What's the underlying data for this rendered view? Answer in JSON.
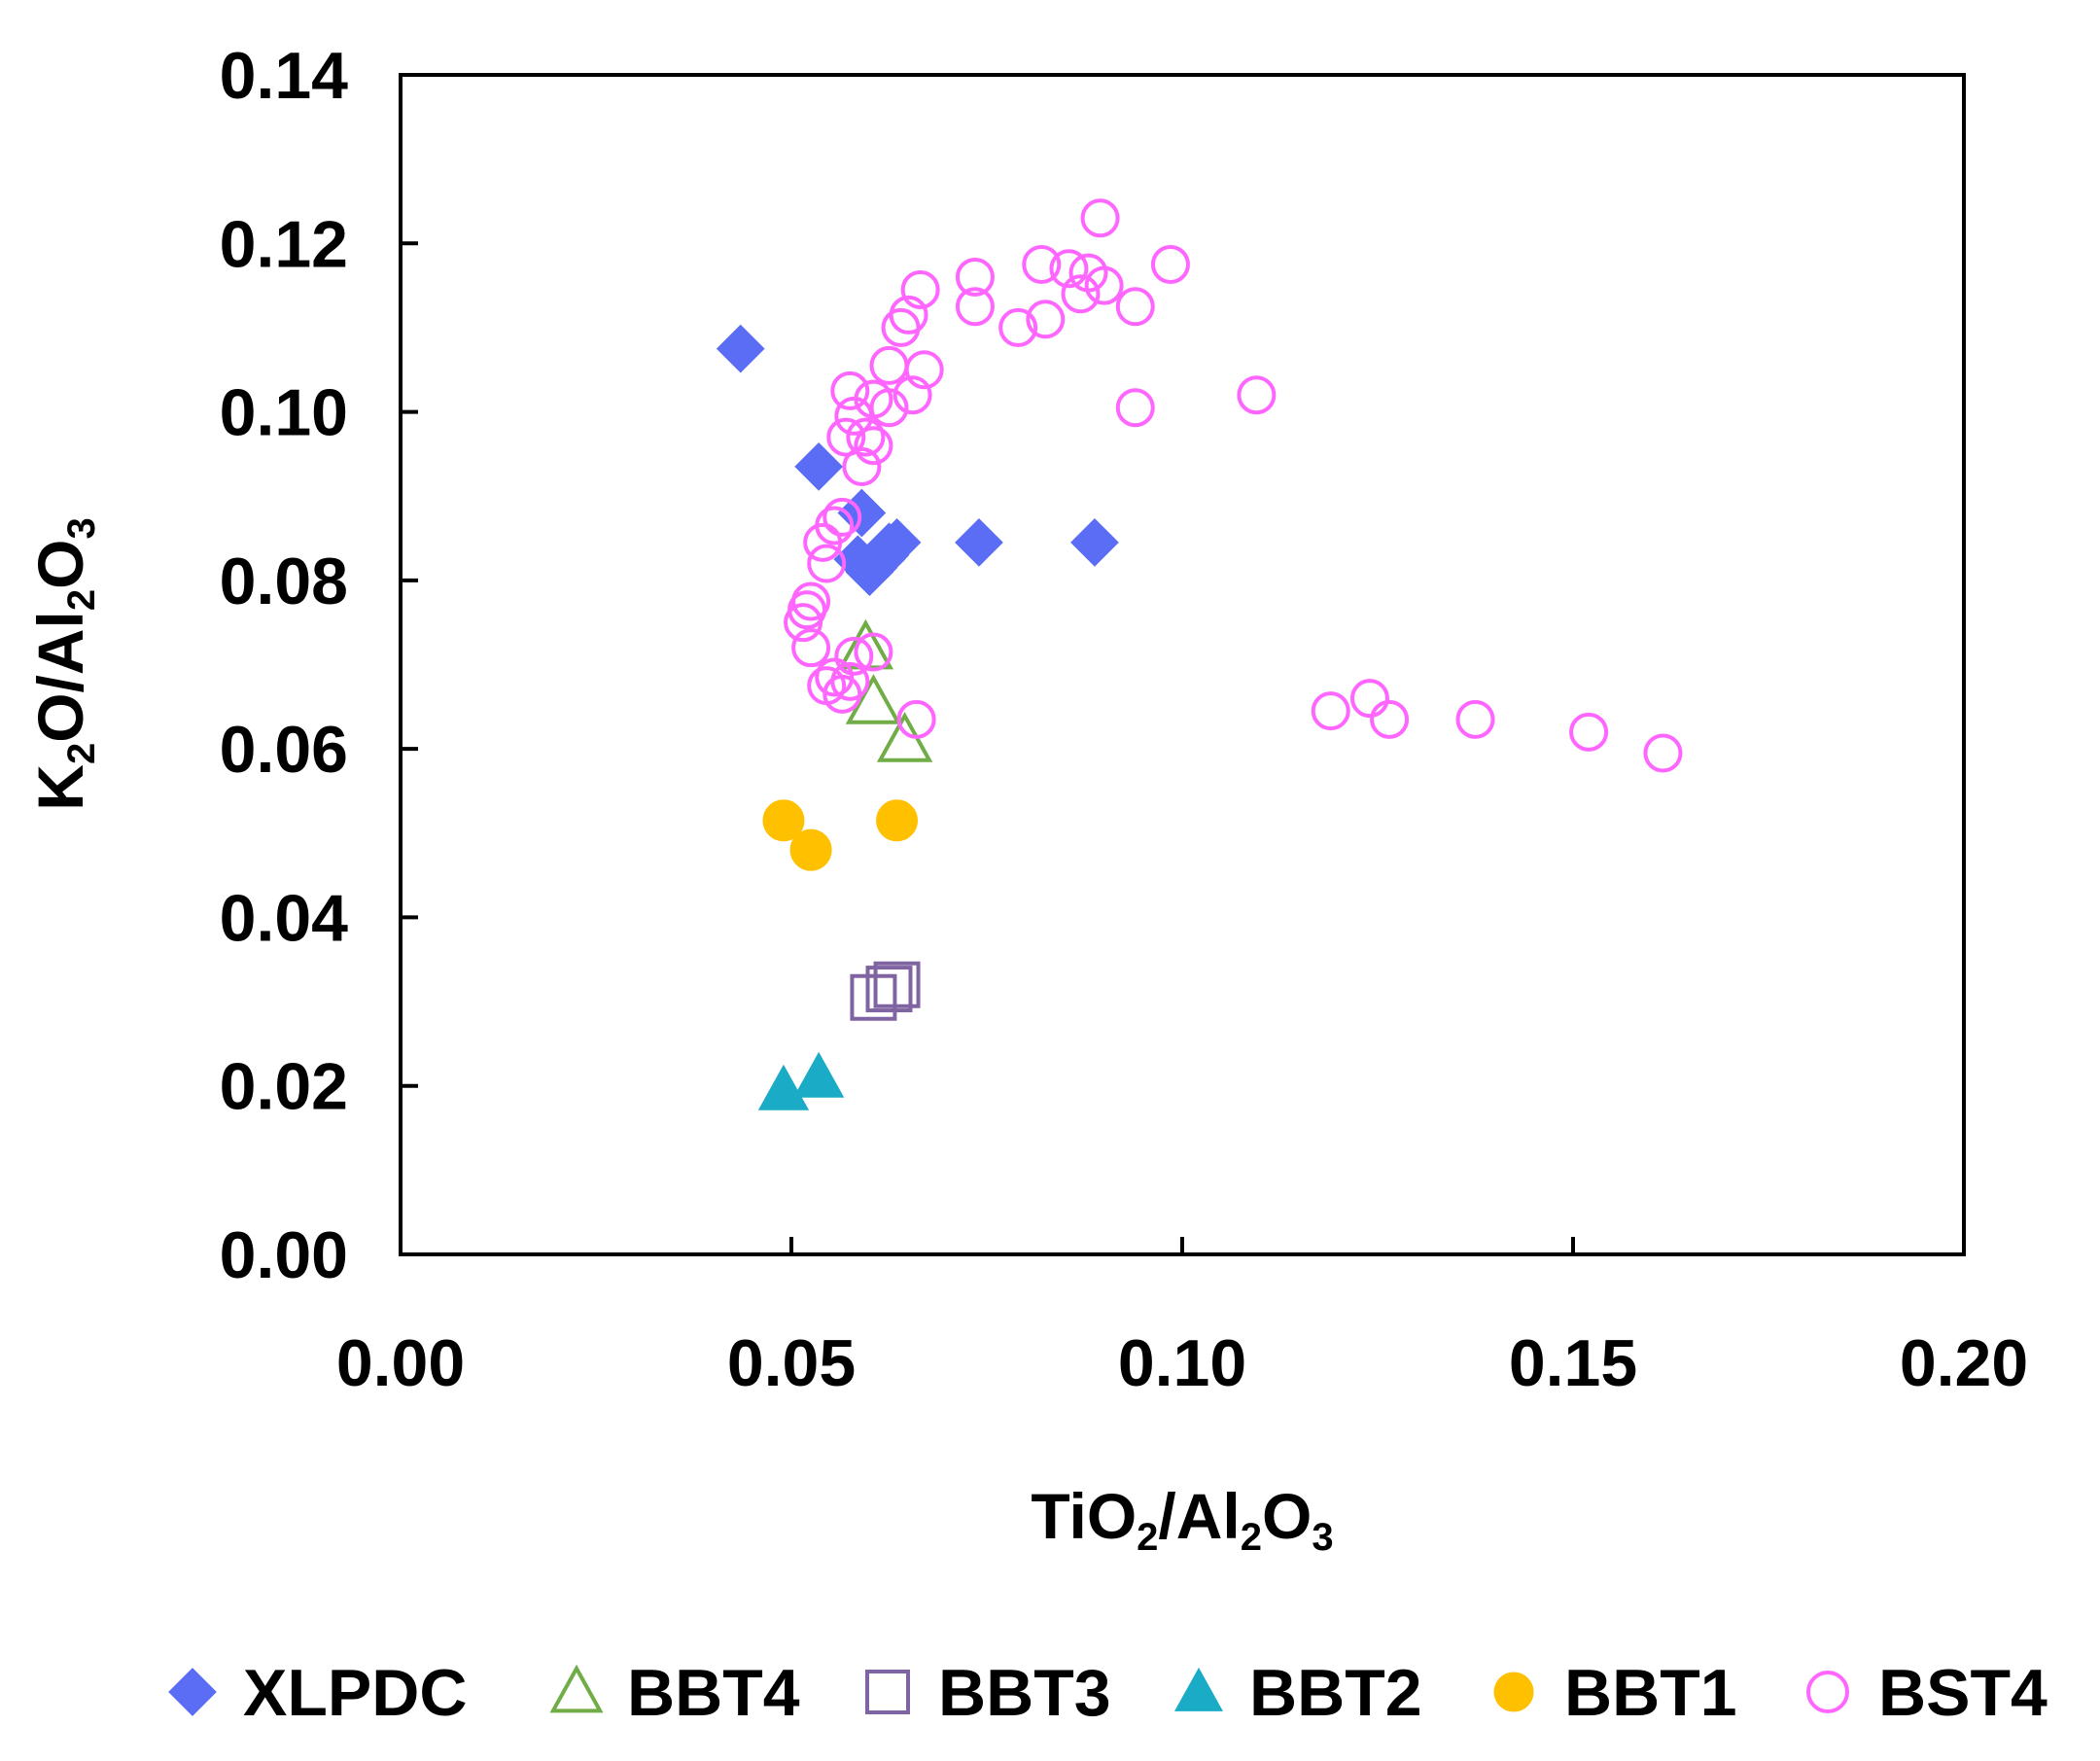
{
  "chart_data": {
    "type": "scatter",
    "title": "",
    "xlabel": {
      "parts": [
        "TiO",
        "2",
        "/Al",
        "2",
        "O",
        "3"
      ]
    },
    "ylabel": {
      "parts": [
        "K",
        "2",
        "O/Al",
        "2",
        "O",
        "3"
      ]
    },
    "xlim": [
      0,
      0.2
    ],
    "ylim": [
      0,
      0.14
    ],
    "xticks": [
      0.0,
      0.05,
      0.1,
      0.15,
      0.2
    ],
    "yticks": [
      0.0,
      0.02,
      0.04,
      0.06,
      0.08,
      0.1,
      0.12,
      0.14
    ],
    "xtick_labels": [
      "0.00",
      "0.05",
      "0.10",
      "0.15",
      "0.20"
    ],
    "ytick_labels": [
      "0.00",
      "0.02",
      "0.04",
      "0.06",
      "0.08",
      "0.10",
      "0.12",
      "0.14"
    ],
    "grid": false,
    "legend_position": "bottom",
    "series": [
      {
        "name": "XLPDC",
        "marker": "diamond",
        "filled": true,
        "color": "#5b6cf5",
        "points": [
          [
            0.0435,
            0.1075
          ],
          [
            0.0535,
            0.0935
          ],
          [
            0.059,
            0.088
          ],
          [
            0.0585,
            0.0825
          ],
          [
            0.06,
            0.081
          ],
          [
            0.0605,
            0.0815
          ],
          [
            0.0615,
            0.0825
          ],
          [
            0.062,
            0.083
          ],
          [
            0.0625,
            0.084
          ],
          [
            0.0635,
            0.0845
          ],
          [
            0.074,
            0.0845
          ],
          [
            0.0888,
            0.0845
          ]
        ]
      },
      {
        "name": "BBT4",
        "marker": "triangle",
        "filled": false,
        "color": "#70ad47",
        "points": [
          [
            0.0595,
            0.072
          ],
          [
            0.0605,
            0.0655
          ],
          [
            0.0645,
            0.061
          ]
        ]
      },
      {
        "name": "BBT3",
        "marker": "square",
        "filled": false,
        "color": "#8064a2",
        "points": [
          [
            0.0605,
            0.0305
          ],
          [
            0.0625,
            0.0315
          ],
          [
            0.0635,
            0.032
          ]
        ]
      },
      {
        "name": "BBT2",
        "marker": "triangle",
        "filled": true,
        "color": "#1aabc7",
        "points": [
          [
            0.049,
            0.0195
          ],
          [
            0.0535,
            0.021
          ]
        ]
      },
      {
        "name": "BBT1",
        "marker": "circle",
        "filled": true,
        "color": "#ffc000",
        "points": [
          [
            0.049,
            0.0515
          ],
          [
            0.0525,
            0.048
          ],
          [
            0.0635,
            0.0515
          ]
        ]
      },
      {
        "name": "BST4",
        "marker": "circle",
        "filled": false,
        "color": "#ff66ff",
        "points": [
          [
            0.0895,
            0.123
          ],
          [
            0.082,
            0.1175
          ],
          [
            0.0855,
            0.117
          ],
          [
            0.0985,
            0.1175
          ],
          [
            0.088,
            0.1165
          ],
          [
            0.0735,
            0.116
          ],
          [
            0.0665,
            0.1145
          ],
          [
            0.09,
            0.115
          ],
          [
            0.087,
            0.114
          ],
          [
            0.094,
            0.1125
          ],
          [
            0.0735,
            0.1125
          ],
          [
            0.0825,
            0.111
          ],
          [
            0.079,
            0.11
          ],
          [
            0.065,
            0.1115
          ],
          [
            0.064,
            0.11
          ],
          [
            0.0625,
            0.1055
          ],
          [
            0.067,
            0.105
          ],
          [
            0.0575,
            0.1025
          ],
          [
            0.0605,
            0.1015
          ],
          [
            0.0625,
            0.1005
          ],
          [
            0.0655,
            0.102
          ],
          [
            0.094,
            0.1005
          ],
          [
            0.1095,
            0.102
          ],
          [
            0.058,
            0.0995
          ],
          [
            0.057,
            0.097
          ],
          [
            0.0595,
            0.097
          ],
          [
            0.0605,
            0.096
          ],
          [
            0.059,
            0.0935
          ],
          [
            0.0565,
            0.0875
          ],
          [
            0.0555,
            0.0865
          ],
          [
            0.054,
            0.0845
          ],
          [
            0.0545,
            0.082
          ],
          [
            0.0525,
            0.0775
          ],
          [
            0.052,
            0.0765
          ],
          [
            0.0515,
            0.075
          ],
          [
            0.0525,
            0.072
          ],
          [
            0.058,
            0.071
          ],
          [
            0.0605,
            0.0715
          ],
          [
            0.0555,
            0.0685
          ],
          [
            0.0575,
            0.068
          ],
          [
            0.0545,
            0.0675
          ],
          [
            0.0565,
            0.0665
          ],
          [
            0.066,
            0.0635
          ],
          [
            0.119,
            0.0645
          ],
          [
            0.124,
            0.066
          ],
          [
            0.1265,
            0.0635
          ],
          [
            0.1375,
            0.0635
          ],
          [
            0.152,
            0.062
          ],
          [
            0.1615,
            0.0595
          ]
        ]
      }
    ]
  }
}
